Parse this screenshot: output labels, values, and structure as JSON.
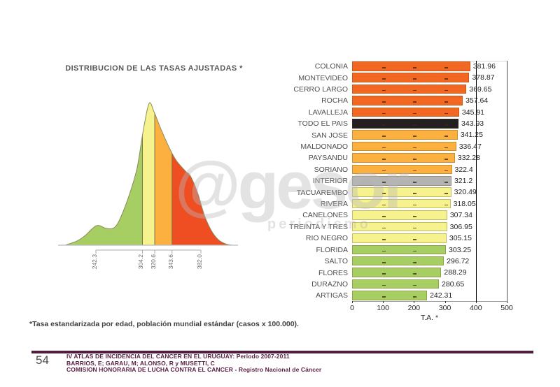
{
  "page": {
    "footnote": "*Tasa estandarizada por edad, población mundial estándar (casos x 100.000).",
    "watermark": {
      "main": "@gesor",
      "sub": "periodismo"
    },
    "footer": {
      "page_number": "54",
      "line1": "IV ATLAS DE INCIDENCIA DEL CANCER EN EL URUGUAY:  Periodo 2007-2011",
      "line2": "BARRIOS, E; GARAU, M; ALONSO, R y MUSETTI, C",
      "line3": "COMISION HONORARIA DE LUCHA CONTRA EL CANCER - Registro Nacional de Cáncer"
    }
  },
  "colors": {
    "orange": "#F26722",
    "black": "#231F20",
    "amber": "#FBB040",
    "gray": "#B3B3B3",
    "paleyellow": "#F6F28D",
    "green": "#A6CE62",
    "red": "#EF4E23",
    "footer_rule": "#4E1D3F",
    "footer_text": "#5C2145",
    "curve_outline": "#8A8A60",
    "band_divider": "#75754A",
    "baseline": "#BBBBBB"
  },
  "chart_data": [
    {
      "type": "bar",
      "orientation": "horizontal",
      "xlabel": "T.A. *",
      "xlim": [
        0,
        500
      ],
      "x_ticks": [
        0,
        100,
        200,
        300,
        400,
        500
      ],
      "reference_line_x": 400,
      "grid_dash_values": [
        100,
        200,
        300
      ],
      "rows": [
        {
          "category": "COLONIA",
          "value": 381.96,
          "label": "381.96",
          "color": "orange"
        },
        {
          "category": "MONTEVIDEO",
          "value": 378.87,
          "label": "378.87",
          "color": "orange"
        },
        {
          "category": "CERRO LARGO",
          "value": 369.65,
          "label": "369.65",
          "color": "orange"
        },
        {
          "category": "ROCHA",
          "value": 357.64,
          "label": "357.64",
          "color": "orange"
        },
        {
          "category": "LAVALLEJA",
          "value": 345.91,
          "label": "345.91",
          "color": "orange"
        },
        {
          "category": "TODO EL PAIS",
          "value": 343.93,
          "label": "343.93",
          "color": "black"
        },
        {
          "category": "SAN JOSE",
          "value": 341.25,
          "label": "341.25",
          "color": "amber"
        },
        {
          "category": "MALDONADO",
          "value": 336.47,
          "label": "336.47",
          "color": "amber"
        },
        {
          "category": "PAYSANDU",
          "value": 332.28,
          "label": "332.28",
          "color": "amber"
        },
        {
          "category": "SORIANO",
          "value": 322.4,
          "label": "322.4",
          "color": "amber"
        },
        {
          "category": "INTERIOR",
          "value": 321.2,
          "label": "321.2",
          "color": "gray"
        },
        {
          "category": "TACUAREMBO",
          "value": 320.49,
          "label": "320.49",
          "color": "paleyellow"
        },
        {
          "category": "RIVERA",
          "value": 318.05,
          "label": "318.05",
          "color": "paleyellow"
        },
        {
          "category": "CANELONES",
          "value": 307.34,
          "label": "307.34",
          "color": "paleyellow"
        },
        {
          "category": "TREINTA Y TRES",
          "value": 306.95,
          "label": "306.95",
          "color": "paleyellow"
        },
        {
          "category": "RIO NEGRO",
          "value": 305.15,
          "label": "305.15",
          "color": "paleyellow"
        },
        {
          "category": "FLORIDA",
          "value": 303.25,
          "label": "303.25",
          "color": "green"
        },
        {
          "category": "SALTO",
          "value": 296.72,
          "label": "296.72",
          "color": "green"
        },
        {
          "category": "FLORES",
          "value": 288.29,
          "label": "288.29",
          "color": "green"
        },
        {
          "category": "DURAZNO",
          "value": 280.65,
          "label": "280.65",
          "color": "green"
        },
        {
          "category": "ARTIGAS",
          "value": 242.31,
          "label": "242.31",
          "color": "green"
        }
      ]
    },
    {
      "type": "area",
      "subtype": "density",
      "title": "DISTRIBUCION DE LAS TASAS AJUSTADAS *",
      "x_ticks": [
        242.3,
        304.2,
        320.6,
        343.6,
        382.0
      ],
      "x_tick_labels": [
        "242.3",
        "304.2",
        "320.6",
        "343.6",
        "382.0"
      ],
      "bands": [
        {
          "from": null,
          "to": 304.2,
          "color": "green"
        },
        {
          "from": 304.2,
          "to": 320.6,
          "color": "paleyellow"
        },
        {
          "from": 320.6,
          "to": 343.6,
          "color": "amber"
        },
        {
          "from": 343.6,
          "to": null,
          "color": "red"
        }
      ],
      "curve": [
        [
          201.3,
          0.0
        ],
        [
          217.2,
          0.03
        ],
        [
          228.3,
          0.069
        ],
        [
          243.2,
          0.138
        ],
        [
          256.3,
          0.118
        ],
        [
          266.5,
          0.123
        ],
        [
          274.9,
          0.192
        ],
        [
          287.0,
          0.36
        ],
        [
          297.2,
          0.547
        ],
        [
          305.6,
          0.818
        ],
        [
          313.1,
          1.0
        ],
        [
          319.6,
          0.941
        ],
        [
          328.9,
          0.818
        ],
        [
          340.1,
          0.685
        ],
        [
          349.4,
          0.596
        ],
        [
          361.5,
          0.522
        ],
        [
          368.0,
          0.488
        ],
        [
          377.3,
          0.374
        ],
        [
          386.6,
          0.212
        ],
        [
          395.9,
          0.103
        ],
        [
          405.2,
          0.039
        ],
        [
          414.5,
          0.01
        ],
        [
          423.8,
          0.0
        ]
      ]
    }
  ]
}
